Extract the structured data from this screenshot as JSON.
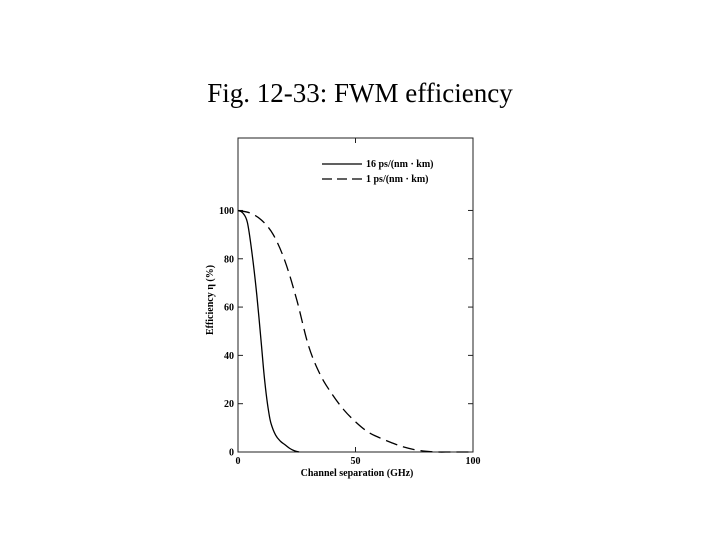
{
  "slide": {
    "title": "Fig. 12-33: FWM efficiency"
  },
  "chart_data": {
    "type": "line",
    "xlabel": "Channel separation (GHz)",
    "ylabel": "Efficiency η (%)",
    "xlim": [
      0,
      100
    ],
    "ylim": [
      0,
      130
    ],
    "x_ticks": [
      0,
      50,
      100
    ],
    "y_ticks": [
      0,
      20,
      40,
      60,
      80,
      100
    ],
    "grid": false,
    "legend_position": "top-right",
    "series": [
      {
        "name": "16 ps/(nm · km)",
        "style": "solid",
        "x": [
          0,
          2,
          4,
          6,
          8,
          10,
          11,
          12,
          13,
          14,
          16,
          18,
          20,
          22,
          24,
          26
        ],
        "y": [
          100,
          99,
          95,
          82,
          65,
          44,
          33,
          24,
          17,
          12,
          7,
          4.5,
          3,
          1.5,
          0.5,
          0
        ]
      },
      {
        "name": "1 ps/(nm · km)",
        "style": "dashed",
        "x": [
          0,
          5,
          10,
          15,
          20,
          25,
          30,
          35,
          40,
          45,
          50,
          55,
          60,
          65,
          70,
          75,
          80,
          85,
          90,
          95,
          100
        ],
        "y": [
          100,
          99,
          96,
          90,
          79,
          63,
          44,
          32,
          24,
          17.5,
          12.5,
          8.5,
          6,
          4,
          2.2,
          1,
          0.3,
          0,
          0,
          0,
          0
        ]
      }
    ]
  }
}
